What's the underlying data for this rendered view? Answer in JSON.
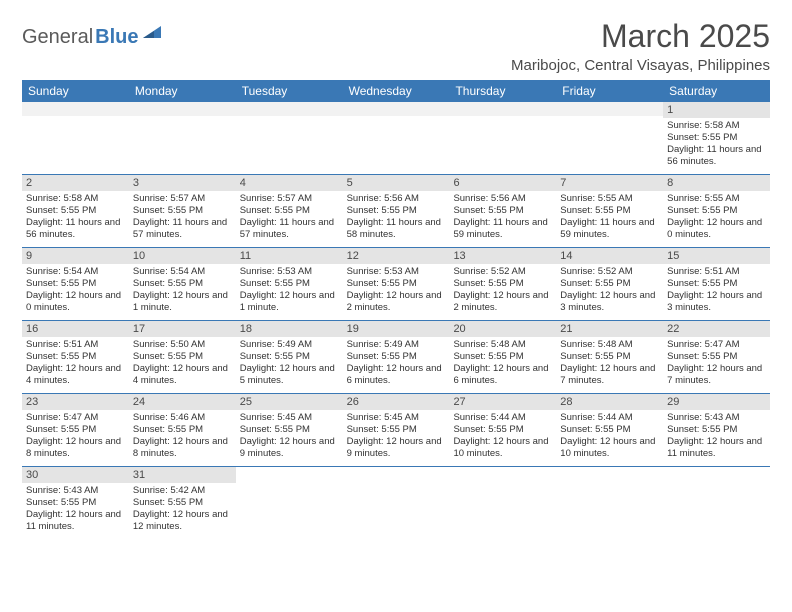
{
  "logo": {
    "part1": "General",
    "part2": "Blue"
  },
  "title": "March 2025",
  "location": "Maribojoc, Central Visayas, Philippines",
  "colors": {
    "header_bg": "#3a78b5",
    "header_text": "#ffffff",
    "daynum_bg": "#e4e4e4",
    "empty_bg": "#f2f2f2",
    "row_border": "#3a78b5",
    "text_dark": "#4a4a4a",
    "body_text": "#333333",
    "logo_gray": "#5a5a5a",
    "logo_blue": "#3a78b5"
  },
  "day_headers": [
    "Sunday",
    "Monday",
    "Tuesday",
    "Wednesday",
    "Thursday",
    "Friday",
    "Saturday"
  ],
  "weeks": [
    [
      {
        "empty": true
      },
      {
        "empty": true
      },
      {
        "empty": true
      },
      {
        "empty": true
      },
      {
        "empty": true
      },
      {
        "empty": true
      },
      {
        "num": "1",
        "sunrise": "Sunrise: 5:58 AM",
        "sunset": "Sunset: 5:55 PM",
        "daylight": "Daylight: 11 hours and 56 minutes."
      }
    ],
    [
      {
        "num": "2",
        "sunrise": "Sunrise: 5:58 AM",
        "sunset": "Sunset: 5:55 PM",
        "daylight": "Daylight: 11 hours and 56 minutes."
      },
      {
        "num": "3",
        "sunrise": "Sunrise: 5:57 AM",
        "sunset": "Sunset: 5:55 PM",
        "daylight": "Daylight: 11 hours and 57 minutes."
      },
      {
        "num": "4",
        "sunrise": "Sunrise: 5:57 AM",
        "sunset": "Sunset: 5:55 PM",
        "daylight": "Daylight: 11 hours and 57 minutes."
      },
      {
        "num": "5",
        "sunrise": "Sunrise: 5:56 AM",
        "sunset": "Sunset: 5:55 PM",
        "daylight": "Daylight: 11 hours and 58 minutes."
      },
      {
        "num": "6",
        "sunrise": "Sunrise: 5:56 AM",
        "sunset": "Sunset: 5:55 PM",
        "daylight": "Daylight: 11 hours and 59 minutes."
      },
      {
        "num": "7",
        "sunrise": "Sunrise: 5:55 AM",
        "sunset": "Sunset: 5:55 PM",
        "daylight": "Daylight: 11 hours and 59 minutes."
      },
      {
        "num": "8",
        "sunrise": "Sunrise: 5:55 AM",
        "sunset": "Sunset: 5:55 PM",
        "daylight": "Daylight: 12 hours and 0 minutes."
      }
    ],
    [
      {
        "num": "9",
        "sunrise": "Sunrise: 5:54 AM",
        "sunset": "Sunset: 5:55 PM",
        "daylight": "Daylight: 12 hours and 0 minutes."
      },
      {
        "num": "10",
        "sunrise": "Sunrise: 5:54 AM",
        "sunset": "Sunset: 5:55 PM",
        "daylight": "Daylight: 12 hours and 1 minute."
      },
      {
        "num": "11",
        "sunrise": "Sunrise: 5:53 AM",
        "sunset": "Sunset: 5:55 PM",
        "daylight": "Daylight: 12 hours and 1 minute."
      },
      {
        "num": "12",
        "sunrise": "Sunrise: 5:53 AM",
        "sunset": "Sunset: 5:55 PM",
        "daylight": "Daylight: 12 hours and 2 minutes."
      },
      {
        "num": "13",
        "sunrise": "Sunrise: 5:52 AM",
        "sunset": "Sunset: 5:55 PM",
        "daylight": "Daylight: 12 hours and 2 minutes."
      },
      {
        "num": "14",
        "sunrise": "Sunrise: 5:52 AM",
        "sunset": "Sunset: 5:55 PM",
        "daylight": "Daylight: 12 hours and 3 minutes."
      },
      {
        "num": "15",
        "sunrise": "Sunrise: 5:51 AM",
        "sunset": "Sunset: 5:55 PM",
        "daylight": "Daylight: 12 hours and 3 minutes."
      }
    ],
    [
      {
        "num": "16",
        "sunrise": "Sunrise: 5:51 AM",
        "sunset": "Sunset: 5:55 PM",
        "daylight": "Daylight: 12 hours and 4 minutes."
      },
      {
        "num": "17",
        "sunrise": "Sunrise: 5:50 AM",
        "sunset": "Sunset: 5:55 PM",
        "daylight": "Daylight: 12 hours and 4 minutes."
      },
      {
        "num": "18",
        "sunrise": "Sunrise: 5:49 AM",
        "sunset": "Sunset: 5:55 PM",
        "daylight": "Daylight: 12 hours and 5 minutes."
      },
      {
        "num": "19",
        "sunrise": "Sunrise: 5:49 AM",
        "sunset": "Sunset: 5:55 PM",
        "daylight": "Daylight: 12 hours and 6 minutes."
      },
      {
        "num": "20",
        "sunrise": "Sunrise: 5:48 AM",
        "sunset": "Sunset: 5:55 PM",
        "daylight": "Daylight: 12 hours and 6 minutes."
      },
      {
        "num": "21",
        "sunrise": "Sunrise: 5:48 AM",
        "sunset": "Sunset: 5:55 PM",
        "daylight": "Daylight: 12 hours and 7 minutes."
      },
      {
        "num": "22",
        "sunrise": "Sunrise: 5:47 AM",
        "sunset": "Sunset: 5:55 PM",
        "daylight": "Daylight: 12 hours and 7 minutes."
      }
    ],
    [
      {
        "num": "23",
        "sunrise": "Sunrise: 5:47 AM",
        "sunset": "Sunset: 5:55 PM",
        "daylight": "Daylight: 12 hours and 8 minutes."
      },
      {
        "num": "24",
        "sunrise": "Sunrise: 5:46 AM",
        "sunset": "Sunset: 5:55 PM",
        "daylight": "Daylight: 12 hours and 8 minutes."
      },
      {
        "num": "25",
        "sunrise": "Sunrise: 5:45 AM",
        "sunset": "Sunset: 5:55 PM",
        "daylight": "Daylight: 12 hours and 9 minutes."
      },
      {
        "num": "26",
        "sunrise": "Sunrise: 5:45 AM",
        "sunset": "Sunset: 5:55 PM",
        "daylight": "Daylight: 12 hours and 9 minutes."
      },
      {
        "num": "27",
        "sunrise": "Sunrise: 5:44 AM",
        "sunset": "Sunset: 5:55 PM",
        "daylight": "Daylight: 12 hours and 10 minutes."
      },
      {
        "num": "28",
        "sunrise": "Sunrise: 5:44 AM",
        "sunset": "Sunset: 5:55 PM",
        "daylight": "Daylight: 12 hours and 10 minutes."
      },
      {
        "num": "29",
        "sunrise": "Sunrise: 5:43 AM",
        "sunset": "Sunset: 5:55 PM",
        "daylight": "Daylight: 12 hours and 11 minutes."
      }
    ],
    [
      {
        "num": "30",
        "sunrise": "Sunrise: 5:43 AM",
        "sunset": "Sunset: 5:55 PM",
        "daylight": "Daylight: 12 hours and 11 minutes."
      },
      {
        "num": "31",
        "sunrise": "Sunrise: 5:42 AM",
        "sunset": "Sunset: 5:55 PM",
        "daylight": "Daylight: 12 hours and 12 minutes."
      },
      {
        "empty": true,
        "noborder": true
      },
      {
        "empty": true,
        "noborder": true
      },
      {
        "empty": true,
        "noborder": true
      },
      {
        "empty": true,
        "noborder": true
      },
      {
        "empty": true,
        "noborder": true
      }
    ]
  ]
}
